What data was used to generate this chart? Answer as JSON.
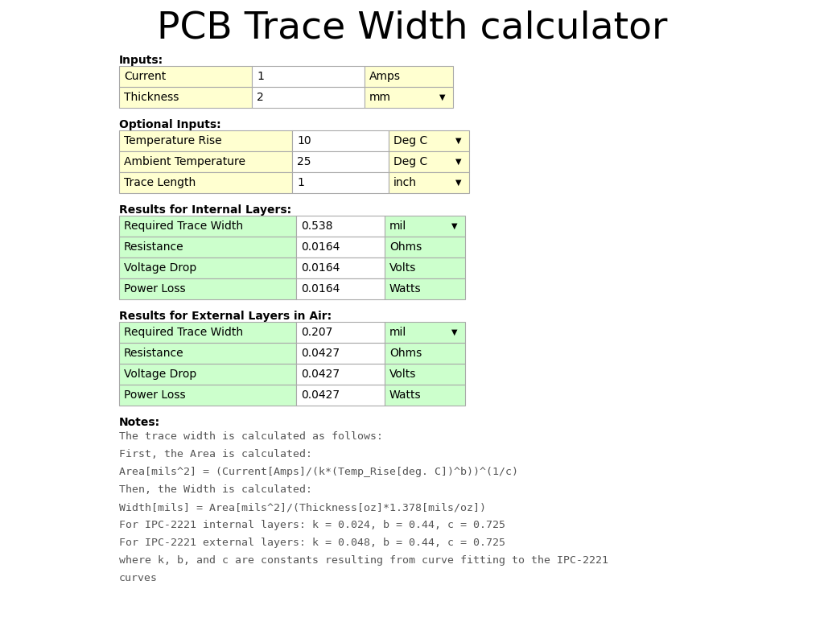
{
  "title": "PCB Trace Width calculator",
  "title_fontsize": 34,
  "bg_color": "#ffffff",
  "inputs_label": "Inputs:",
  "optional_inputs_label": "Optional Inputs:",
  "internal_results_label": "Results for Internal Layers:",
  "external_results_label": "Results for External Layers in Air:",
  "notes_label": "Notes:",
  "input_rows": [
    {
      "label": "Current",
      "value": "1",
      "unit": "Amps",
      "has_dropdown": false
    },
    {
      "label": "Thickness",
      "value": "2",
      "unit": "mm",
      "has_dropdown": true
    }
  ],
  "optional_rows": [
    {
      "label": "Temperature Rise",
      "value": "10",
      "unit": "Deg C",
      "has_dropdown": true
    },
    {
      "label": "Ambient Temperature",
      "value": "25",
      "unit": "Deg C",
      "has_dropdown": true
    },
    {
      "label": "Trace Length",
      "value": "1",
      "unit": "inch",
      "has_dropdown": true
    }
  ],
  "internal_rows": [
    {
      "label": "Required Trace Width",
      "value": "0.538",
      "unit": "mil",
      "has_dropdown": true
    },
    {
      "label": "Resistance",
      "value": "0.0164",
      "unit": "Ohms",
      "has_dropdown": false
    },
    {
      "label": "Voltage Drop",
      "value": "0.0164",
      "unit": "Volts",
      "has_dropdown": false
    },
    {
      "label": "Power Loss",
      "value": "0.0164",
      "unit": "Watts",
      "has_dropdown": false
    }
  ],
  "external_rows": [
    {
      "label": "Required Trace Width",
      "value": "0.207",
      "unit": "mil",
      "has_dropdown": true
    },
    {
      "label": "Resistance",
      "value": "0.0427",
      "unit": "Ohms",
      "has_dropdown": false
    },
    {
      "label": "Voltage Drop",
      "value": "0.0427",
      "unit": "Volts",
      "has_dropdown": false
    },
    {
      "label": "Power Loss",
      "value": "0.0427",
      "unit": "Watts",
      "has_dropdown": false
    }
  ],
  "notes_lines": [
    "The trace width is calculated as follows:",
    "First, the Area is calculated:",
    "Area[mils^2] = (Current[Amps]/(k*(Temp_Rise[deg. C])^b))^(1/c)",
    "Then, the Width is calculated:",
    "Width[mils] = Area[mils^2]/(Thickness[oz]*1.378[mils/oz])",
    "For IPC-2221 internal layers: k = 0.024, b = 0.44, c = 0.725",
    "For IPC-2221 external layers: k = 0.048, b = 0.44, c = 0.725",
    "where k, b, and c are constants resulting from curve fitting to the IPC-2221\ncurves"
  ],
  "yellow_color": "#ffffd0",
  "green_color": "#ccffcc",
  "border_color": "#aaaaaa",
  "white_color": "#ffffff"
}
